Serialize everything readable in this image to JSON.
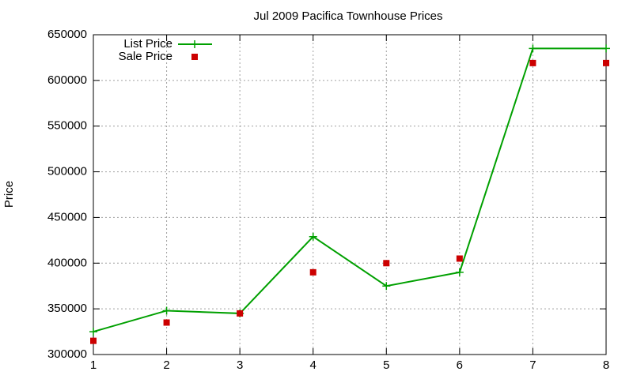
{
  "chart_data": {
    "type": "line",
    "title": "Jul 2009 Pacifica Townhouse Prices",
    "y_label": "Price",
    "x": [
      1,
      2,
      3,
      4,
      5,
      6,
      7,
      8
    ],
    "series": [
      {
        "name": "List Price",
        "color": "#00a000",
        "style": "lines+markers",
        "values": [
          325000,
          348000,
          345000,
          429000,
          375000,
          390000,
          635000,
          635000
        ]
      },
      {
        "name": "Sale Price",
        "color": "#cc0000",
        "style": "markers",
        "values": [
          315000,
          335000,
          345000,
          390000,
          400000,
          405000,
          619000,
          619000
        ]
      }
    ],
    "xlim": [
      1,
      8
    ],
    "xticks": [
      1,
      2,
      3,
      4,
      5,
      6,
      7,
      8
    ],
    "ylim": [
      300000,
      650000
    ],
    "yticks": [
      300000,
      350000,
      400000,
      450000,
      500000,
      550000,
      600000,
      650000
    ],
    "grid": true,
    "legend": "top-left"
  }
}
